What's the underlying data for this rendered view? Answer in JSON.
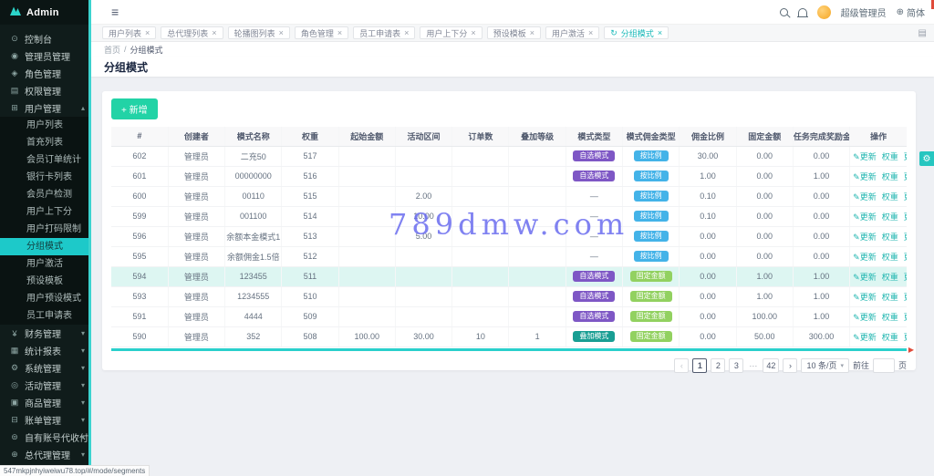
{
  "colors": {
    "accent_teal": "#1fc6c0",
    "button_green": "#22d3a6",
    "badge_purple": "#7e57c5",
    "badge_blue": "#44b3e8",
    "badge_green": "#92d160",
    "badge_dark_teal": "#189e93",
    "highlight_row": "#ddf6f2",
    "watermark_color": "#6a6cee",
    "sidebar_bg": "#101c1b"
  },
  "icons": {
    "hamburger": "≡",
    "globe": "⊕",
    "gear": "⚙",
    "close": "×",
    "refresh": "↻",
    "pencil": "✎",
    "caret_down": "▾",
    "caret_up": "▴"
  },
  "sidebar": {
    "brand": "Admin",
    "items": [
      {
        "key": "dashboard",
        "label": "控制台",
        "glyph": "⊙"
      },
      {
        "key": "admin",
        "label": "管理员管理",
        "glyph": "◉"
      },
      {
        "key": "role",
        "label": "角色管理",
        "glyph": "◈"
      },
      {
        "key": "permission",
        "label": "权限管理",
        "glyph": "▤"
      },
      {
        "key": "user",
        "label": "用户管理",
        "glyph": "⊞",
        "expanded": true,
        "children": [
          {
            "label": "用户列表"
          },
          {
            "label": "首充列表"
          },
          {
            "label": "会员订单统计"
          },
          {
            "label": "银行卡列表"
          },
          {
            "label": "会员户检测"
          },
          {
            "label": "用户上下分"
          },
          {
            "label": "用户打码限制"
          },
          {
            "label": "分组模式",
            "active": true
          },
          {
            "label": "用户激活"
          },
          {
            "label": "预设模板"
          },
          {
            "label": "用户预设模式"
          },
          {
            "label": "员工申请表"
          }
        ]
      },
      {
        "key": "finance",
        "label": "财务管理",
        "glyph": "¥",
        "arrow": true
      },
      {
        "key": "stats",
        "label": "统计报表",
        "glyph": "▦",
        "arrow": true
      },
      {
        "key": "system",
        "label": "系统管理",
        "glyph": "⚙",
        "arrow": true
      },
      {
        "key": "activity",
        "label": "活动管理",
        "glyph": "◎",
        "arrow": true
      },
      {
        "key": "goods",
        "label": "商品管理",
        "glyph": "▣",
        "arrow": true
      },
      {
        "key": "billing",
        "label": "账单管理",
        "glyph": "⊟",
        "arrow": true
      },
      {
        "key": "payment",
        "label": "自有账号代收付",
        "glyph": "⊜",
        "arrow": true
      },
      {
        "key": "agent",
        "label": "总代理管理",
        "glyph": "⊕",
        "arrow": true
      }
    ]
  },
  "header": {
    "username": "超级管理员",
    "language": "简体"
  },
  "tabs": [
    {
      "label": "用户列表"
    },
    {
      "label": "总代理列表"
    },
    {
      "label": "轮播图列表"
    },
    {
      "label": "角色管理"
    },
    {
      "label": "员工申请表"
    },
    {
      "label": "用户上下分"
    },
    {
      "label": "预设模板"
    },
    {
      "label": "用户激活"
    },
    {
      "label": "分组模式",
      "active": true
    }
  ],
  "breadcrumb": {
    "home": "首页",
    "separator": "/",
    "current": "分组模式"
  },
  "page": {
    "title": "分组模式"
  },
  "toolbar": {
    "add_label": "+ 新增"
  },
  "table": {
    "columns": [
      "#",
      "创建者",
      "模式名称",
      "权重",
      "起始金额",
      "活动区间",
      "订单数",
      "叠加等级",
      "模式类型",
      "模式佣金类型",
      "佣金比例",
      "固定金额",
      "任务完成奖励金额",
      "操作"
    ],
    "actions": [
      "更新",
      "权重",
      "更多"
    ],
    "rows": [
      {
        "id": "602",
        "creator": "管理员",
        "name": "二充50",
        "weight": "517",
        "start": "",
        "range": "",
        "orders": "",
        "level": "",
        "mode": "自选模式",
        "mode_style": "purple",
        "commission": "按比例",
        "commission_style": "blue",
        "ratio": "30.00",
        "fixed": "0.00",
        "reward": "0.00",
        "highlight": false
      },
      {
        "id": "601",
        "creator": "管理员",
        "name": "00000000",
        "weight": "516",
        "start": "",
        "range": "",
        "orders": "",
        "level": "",
        "mode": "自选模式",
        "mode_style": "purple",
        "commission": "按比例",
        "commission_style": "blue",
        "ratio": "1.00",
        "fixed": "0.00",
        "reward": "1.00",
        "highlight": false
      },
      {
        "id": "600",
        "creator": "管理员",
        "name": "00110",
        "weight": "515",
        "start": "",
        "range": "2.00",
        "orders": "",
        "level": "",
        "mode": "—",
        "mode_style": "dash",
        "commission": "按比例",
        "commission_style": "blue",
        "ratio": "0.10",
        "fixed": "0.00",
        "reward": "0.00",
        "highlight": false
      },
      {
        "id": "599",
        "creator": "管理员",
        "name": "001100",
        "weight": "514",
        "start": "",
        "range": "10.00",
        "orders": "",
        "level": "",
        "mode": "—",
        "mode_style": "dash",
        "commission": "按比例",
        "commission_style": "blue",
        "ratio": "0.10",
        "fixed": "0.00",
        "reward": "0.00",
        "highlight": false
      },
      {
        "id": "596",
        "creator": "管理员",
        "name": "余额本金模式1",
        "weight": "513",
        "start": "",
        "range": "5.00",
        "orders": "",
        "level": "",
        "mode": "—",
        "mode_style": "dash",
        "commission": "按比例",
        "commission_style": "blue",
        "ratio": "0.00",
        "fixed": "0.00",
        "reward": "0.00",
        "highlight": false
      },
      {
        "id": "595",
        "creator": "管理员",
        "name": "余额佣金1.5倍",
        "weight": "512",
        "start": "",
        "range": "",
        "orders": "",
        "level": "",
        "mode": "—",
        "mode_style": "dash",
        "commission": "按比例",
        "commission_style": "blue",
        "ratio": "0.00",
        "fixed": "0.00",
        "reward": "0.00",
        "highlight": false
      },
      {
        "id": "594",
        "creator": "管理员",
        "name": "123455",
        "weight": "511",
        "start": "",
        "range": "",
        "orders": "",
        "level": "",
        "mode": "自选模式",
        "mode_style": "purple",
        "commission": "固定金额",
        "commission_style": "green",
        "ratio": "0.00",
        "fixed": "1.00",
        "reward": "1.00",
        "highlight": true
      },
      {
        "id": "593",
        "creator": "管理员",
        "name": "1234555",
        "weight": "510",
        "start": "",
        "range": "",
        "orders": "",
        "level": "",
        "mode": "自选模式",
        "mode_style": "purple",
        "commission": "固定金额",
        "commission_style": "green",
        "ratio": "0.00",
        "fixed": "1.00",
        "reward": "1.00",
        "highlight": false
      },
      {
        "id": "591",
        "creator": "管理员",
        "name": "4444",
        "weight": "509",
        "start": "",
        "range": "",
        "orders": "",
        "level": "",
        "mode": "自选模式",
        "mode_style": "purple",
        "commission": "固定金额",
        "commission_style": "green",
        "ratio": "0.00",
        "fixed": "100.00",
        "reward": "1.00",
        "highlight": false
      },
      {
        "id": "590",
        "creator": "管理员",
        "name": "352",
        "weight": "508",
        "start": "100.00",
        "range": "30.00",
        "orders": "10",
        "level": "1",
        "mode": "叠加模式",
        "mode_style": "dark",
        "commission": "固定金额",
        "commission_style": "green",
        "ratio": "0.00",
        "fixed": "50.00",
        "reward": "300.00",
        "highlight": false
      }
    ]
  },
  "pagination": {
    "prev": "‹",
    "next": "›",
    "pages": [
      "1",
      "2",
      "3",
      "···",
      "42"
    ],
    "dots": "···",
    "active": "1",
    "page_size": "10 条/页",
    "goto_label": "前往",
    "unit_label": "页"
  },
  "watermark": {
    "text": "789dmw.com"
  },
  "statusbar": {
    "url": "547mkpjnhyiweiwu78.top/#/mode/segments"
  }
}
